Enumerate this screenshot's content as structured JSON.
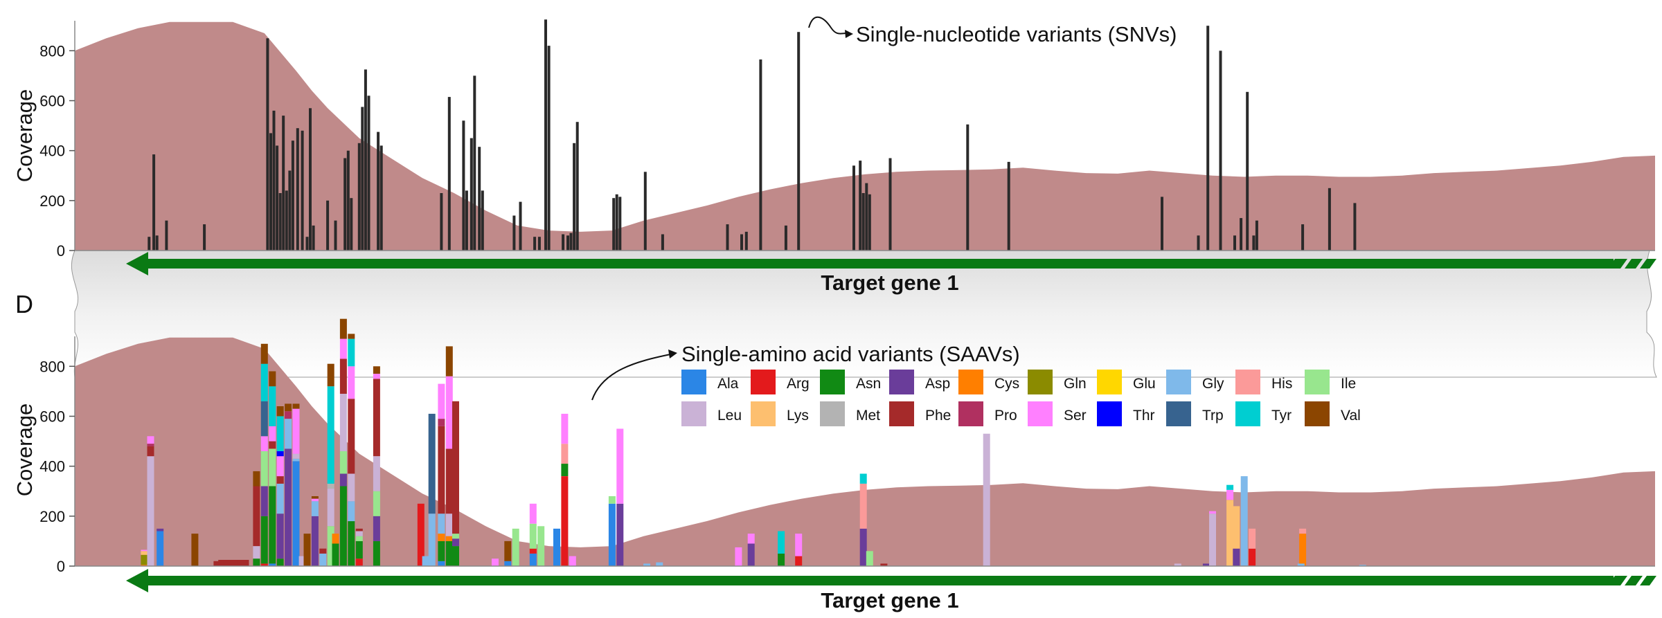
{
  "panel_letter": "D",
  "colors": {
    "coverage_fill": "#c08a8a",
    "snv_bar": "#2a2a2a",
    "gene_arrow": "#0a7a14",
    "separator": "#d6d6d6"
  },
  "amino_acids": [
    {
      "name": "Ala",
      "color": "#2b86e6"
    },
    {
      "name": "Arg",
      "color": "#e31a1c"
    },
    {
      "name": "Asn",
      "color": "#118a14"
    },
    {
      "name": "Asp",
      "color": "#6a3d9a"
    },
    {
      "name": "Cys",
      "color": "#ff7f00"
    },
    {
      "name": "Gln",
      "color": "#8b8b00"
    },
    {
      "name": "Glu",
      "color": "#ffd700"
    },
    {
      "name": "Gly",
      "color": "#7fb9ea"
    },
    {
      "name": "His",
      "color": "#fb9a99"
    },
    {
      "name": "Ile",
      "color": "#98e68e"
    },
    {
      "name": "Leu",
      "color": "#cab2d6"
    },
    {
      "name": "Lys",
      "color": "#fdbf6f"
    },
    {
      "name": "Met",
      "color": "#b3b3b3"
    },
    {
      "name": "Phe",
      "color": "#a52a2a"
    },
    {
      "name": "Pro",
      "color": "#b03060"
    },
    {
      "name": "Ser",
      "color": "#ff80ff"
    },
    {
      "name": "Thr",
      "color": "#0000ff"
    },
    {
      "name": "Trp",
      "color": "#37638f"
    },
    {
      "name": "Tyr",
      "color": "#00ced1"
    },
    {
      "name": "Val",
      "color": "#8b4500"
    }
  ],
  "chart_data": [
    {
      "type": "bar",
      "title": "",
      "annotation": "Single-nucleotide variants (SNVs)",
      "ylabel": "Coverage",
      "xlabel": "",
      "ylim": [
        0,
        920
      ],
      "yticks": [
        "0",
        "200",
        "400",
        "600",
        "800"
      ],
      "xlim": [
        0,
        1000
      ],
      "gene_label": "Target gene 1",
      "coverage": {
        "x": [
          0,
          20,
          40,
          60,
          80,
          100,
          120,
          140,
          150,
          160,
          180,
          200,
          220,
          240,
          260,
          280,
          300,
          320,
          340,
          360,
          380,
          400,
          420,
          440,
          460,
          480,
          500,
          520,
          540,
          560,
          580,
          600,
          620,
          640,
          660,
          680,
          700,
          720,
          740,
          760,
          780,
          800,
          820,
          840,
          860,
          880,
          900,
          920,
          940,
          960,
          980,
          1000
        ],
        "y": [
          800,
          850,
          890,
          915,
          915,
          915,
          870,
          720,
          640,
          570,
          450,
          370,
          290,
          230,
          160,
          100,
          80,
          75,
          80,
          120,
          150,
          180,
          215,
          245,
          270,
          290,
          305,
          315,
          320,
          322,
          325,
          332,
          320,
          310,
          308,
          320,
          310,
          300,
          295,
          300,
          300,
          295,
          295,
          300,
          310,
          315,
          320,
          330,
          340,
          355,
          375,
          380
        ]
      },
      "bars": [
        {
          "x": 47,
          "y": 55
        },
        {
          "x": 50,
          "y": 385
        },
        {
          "x": 52,
          "y": 60
        },
        {
          "x": 58,
          "y": 120
        },
        {
          "x": 82,
          "y": 105
        },
        {
          "x": 122,
          "y": 850
        },
        {
          "x": 124,
          "y": 470
        },
        {
          "x": 126,
          "y": 560
        },
        {
          "x": 128,
          "y": 420
        },
        {
          "x": 130,
          "y": 230
        },
        {
          "x": 132,
          "y": 540
        },
        {
          "x": 134,
          "y": 240
        },
        {
          "x": 136,
          "y": 320
        },
        {
          "x": 138,
          "y": 440
        },
        {
          "x": 141,
          "y": 490
        },
        {
          "x": 144,
          "y": 480
        },
        {
          "x": 147,
          "y": 55
        },
        {
          "x": 149,
          "y": 570
        },
        {
          "x": 151,
          "y": 100
        },
        {
          "x": 160,
          "y": 200
        },
        {
          "x": 165,
          "y": 120
        },
        {
          "x": 171,
          "y": 370
        },
        {
          "x": 173,
          "y": 400
        },
        {
          "x": 175,
          "y": 210
        },
        {
          "x": 180,
          "y": 430
        },
        {
          "x": 182,
          "y": 575
        },
        {
          "x": 184,
          "y": 725
        },
        {
          "x": 186,
          "y": 620
        },
        {
          "x": 192,
          "y": 475
        },
        {
          "x": 194,
          "y": 420
        },
        {
          "x": 232,
          "y": 230
        },
        {
          "x": 237,
          "y": 615
        },
        {
          "x": 246,
          "y": 520
        },
        {
          "x": 248,
          "y": 240
        },
        {
          "x": 251,
          "y": 450
        },
        {
          "x": 253,
          "y": 700
        },
        {
          "x": 256,
          "y": 415
        },
        {
          "x": 258,
          "y": 240
        },
        {
          "x": 278,
          "y": 140
        },
        {
          "x": 282,
          "y": 195
        },
        {
          "x": 291,
          "y": 55
        },
        {
          "x": 294,
          "y": 55
        },
        {
          "x": 298,
          "y": 925
        },
        {
          "x": 300,
          "y": 820
        },
        {
          "x": 309,
          "y": 65
        },
        {
          "x": 312,
          "y": 60
        },
        {
          "x": 314,
          "y": 70
        },
        {
          "x": 316,
          "y": 430
        },
        {
          "x": 318,
          "y": 515
        },
        {
          "x": 341,
          "y": 210
        },
        {
          "x": 343,
          "y": 225
        },
        {
          "x": 345,
          "y": 215
        },
        {
          "x": 361,
          "y": 315
        },
        {
          "x": 372,
          "y": 65
        },
        {
          "x": 413,
          "y": 105
        },
        {
          "x": 422,
          "y": 65
        },
        {
          "x": 425,
          "y": 75
        },
        {
          "x": 434,
          "y": 765
        },
        {
          "x": 450,
          "y": 100
        },
        {
          "x": 458,
          "y": 875
        },
        {
          "x": 493,
          "y": 340
        },
        {
          "x": 497,
          "y": 360
        },
        {
          "x": 499,
          "y": 230
        },
        {
          "x": 501,
          "y": 270
        },
        {
          "x": 503,
          "y": 225
        },
        {
          "x": 516,
          "y": 370
        },
        {
          "x": 565,
          "y": 505
        },
        {
          "x": 591,
          "y": 355
        },
        {
          "x": 688,
          "y": 215
        },
        {
          "x": 711,
          "y": 60
        },
        {
          "x": 717,
          "y": 900
        },
        {
          "x": 725,
          "y": 800
        },
        {
          "x": 734,
          "y": 60
        },
        {
          "x": 738,
          "y": 130
        },
        {
          "x": 742,
          "y": 635
        },
        {
          "x": 746,
          "y": 60
        },
        {
          "x": 748,
          "y": 120
        },
        {
          "x": 777,
          "y": 105
        },
        {
          "x": 794,
          "y": 250
        },
        {
          "x": 810,
          "y": 190
        }
      ]
    },
    {
      "type": "bar",
      "title": "",
      "annotation": "Single-amino acid variants (SAAVs)",
      "ylabel": "Coverage",
      "xlabel": "",
      "ylim": [
        0,
        920
      ],
      "yticks": [
        "0",
        "200",
        "400",
        "600",
        "800"
      ],
      "xlim": [
        0,
        1000
      ],
      "gene_label": "Target gene 1",
      "stack_order": [
        "Ala",
        "Arg",
        "Asn",
        "Asp",
        "Cys",
        "Gln",
        "Glu",
        "Gly",
        "His",
        "Ile",
        "Leu",
        "Lys",
        "Met",
        "Phe",
        "Pro",
        "Ser",
        "Thr",
        "Trp",
        "Tyr",
        "Val"
      ],
      "bars": [
        {
          "x": 44,
          "v": {
            "Gln": 40,
            "Lys": 15,
            "Cys": 5,
            "Ser": 5
          }
        },
        {
          "x": 48,
          "v": {
            "Leu": 440,
            "Phe": 40,
            "Ser": 30,
            "Pro": 10
          }
        },
        {
          "x": 54,
          "v": {
            "Ala": 140,
            "Asp": 10
          }
        },
        {
          "x": 76,
          "v": {
            "Val": 130
          }
        },
        {
          "x": 90,
          "v": {
            "Phe": 20
          }
        },
        {
          "x": 93,
          "v": {
            "Phe": 25
          }
        },
        {
          "x": 96,
          "v": {
            "Phe": 25
          }
        },
        {
          "x": 99,
          "v": {
            "Phe": 25
          }
        },
        {
          "x": 102,
          "v": {
            "Phe": 25
          }
        },
        {
          "x": 105,
          "v": {
            "Phe": 25
          }
        },
        {
          "x": 108,
          "v": {
            "Phe": 25
          }
        },
        {
          "x": 115,
          "v": {
            "Leu": 50,
            "Phe": 240,
            "Asn": 30,
            "Val": 60
          }
        },
        {
          "x": 120,
          "v": {
            "Arg": 10,
            "Asn": 190,
            "Asp": 120,
            "Ile": 140,
            "Tyr": 150,
            "Ser": 60,
            "Trp": 140,
            "Val": 80
          }
        },
        {
          "x": 125,
          "v": {
            "Ala": 10,
            "Asn": 310,
            "Ile": 150,
            "Phe": 30,
            "Ser": 60,
            "Tyr": 160,
            "Val": 60
          }
        },
        {
          "x": 130,
          "v": {
            "Asn": 30,
            "Asp": 180,
            "Gly": 120,
            "Ser": 80,
            "Tyr": 140,
            "Thr": 20,
            "Phe": 30,
            "Val": 40
          }
        },
        {
          "x": 135,
          "v": {
            "Asp": 470,
            "Gly": 120,
            "Pro": 30,
            "Val": 30
          }
        },
        {
          "x": 140,
          "v": {
            "Ala": 420,
            "Gly": 10,
            "Ser": 180,
            "Val": 20,
            "Leu": 20
          }
        },
        {
          "x": 144,
          "v": {
            "Leu": 40
          }
        },
        {
          "x": 147,
          "v": {
            "Val": 130
          }
        },
        {
          "x": 152,
          "v": {
            "Asp": 200,
            "Gly": 60,
            "Ser": 10,
            "Val": 10
          }
        },
        {
          "x": 157,
          "v": {
            "Gly": 50,
            "Phe": 20
          }
        },
        {
          "x": 162,
          "v": {
            "Met": 20,
            "Ile": 160,
            "Leu": 150,
            "Tyr": 390,
            "Val": 90
          }
        },
        {
          "x": 165,
          "v": {
            "Cys": 40,
            "Asn": 90
          }
        },
        {
          "x": 170,
          "v": {
            "Asn": 320,
            "Asp": 50,
            "Ile": 90,
            "Leu": 230,
            "Phe": 140,
            "Ser": 80,
            "Val": 80
          }
        },
        {
          "x": 175,
          "v": {
            "Asn": 180,
            "Gly": 80,
            "Leu": 110,
            "Phe": 300,
            "Ser": 130,
            "Tyr": 110,
            "Val": 20
          }
        },
        {
          "x": 180,
          "v": {
            "Arg": 30,
            "Asn": 70,
            "Ile": 20,
            "Leu": 20,
            "Phe": 10
          }
        },
        {
          "x": 191,
          "v": {
            "Asn": 100,
            "Asp": 100,
            "Ile": 100,
            "Leu": 140,
            "Phe": 310,
            "Ser": 20,
            "Val": 30
          }
        },
        {
          "x": 219,
          "v": {
            "Arg": 250
          }
        },
        {
          "x": 222,
          "v": {
            "Gly": 40
          }
        },
        {
          "x": 226,
          "v": {
            "Gly": 210,
            "Trp": 400
          }
        },
        {
          "x": 232,
          "v": {
            "Asn": 80,
            "Ala": 20,
            "Cys": 30,
            "Gly": 80,
            "Phe": 350,
            "Ser": 140,
            "Pro": 30
          }
        },
        {
          "x": 237,
          "v": {
            "Asn": 100,
            "Cys": 20,
            "Phe": 260,
            "Leu": 90,
            "Ser": 290,
            "Val": 120
          }
        },
        {
          "x": 241,
          "v": {
            "Asn": 80,
            "Asp": 30,
            "Ile": 20,
            "Phe": 530
          }
        },
        {
          "x": 266,
          "v": {
            "Ser": 30
          }
        },
        {
          "x": 274,
          "v": {
            "Ala": 20,
            "Val": 80
          }
        },
        {
          "x": 279,
          "v": {
            "Ile": 150
          }
        },
        {
          "x": 290,
          "v": {
            "Ala": 50,
            "Arg": 20,
            "Ile": 100,
            "Ser": 80
          }
        },
        {
          "x": 295,
          "v": {
            "Ile": 160
          }
        },
        {
          "x": 305,
          "v": {
            "Ala": 150
          }
        },
        {
          "x": 310,
          "v": {
            "Arg": 360,
            "Asn": 50,
            "His": 80,
            "Ser": 120
          }
        },
        {
          "x": 315,
          "v": {
            "Ser": 40
          }
        },
        {
          "x": 340,
          "v": {
            "Ala": 250,
            "Ile": 30
          }
        },
        {
          "x": 345,
          "v": {
            "Asp": 250,
            "Ser": 300
          }
        },
        {
          "x": 362,
          "v": {
            "Gly": 10
          }
        },
        {
          "x": 370,
          "v": {
            "Gly": 15
          }
        },
        {
          "x": 420,
          "v": {
            "Ser": 75
          }
        },
        {
          "x": 428,
          "v": {
            "Asp": 90,
            "Ser": 40
          }
        },
        {
          "x": 447,
          "v": {
            "Asn": 50,
            "Tyr": 90
          }
        },
        {
          "x": 458,
          "v": {
            "Arg": 40,
            "Ser": 90
          }
        },
        {
          "x": 499,
          "v": {
            "Asp": 150,
            "His": 180,
            "Tyr": 40
          }
        },
        {
          "x": 503,
          "v": {
            "Ile": 60
          }
        },
        {
          "x": 512,
          "v": {
            "Phe": 10
          }
        },
        {
          "x": 577,
          "v": {
            "Leu": 530
          }
        },
        {
          "x": 698,
          "v": {
            "Leu": 10
          }
        },
        {
          "x": 716,
          "v": {
            "Asp": 10
          }
        },
        {
          "x": 720,
          "v": {
            "Leu": 210,
            "Ser": 10
          }
        },
        {
          "x": 731,
          "v": {
            "Lys": 265,
            "Ser": 40,
            "Tyr": 20
          }
        },
        {
          "x": 735,
          "v": {
            "Asp": 70,
            "Lys": 170
          }
        },
        {
          "x": 740,
          "v": {
            "Gly": 360
          }
        },
        {
          "x": 745,
          "v": {
            "Arg": 70,
            "His": 80
          }
        },
        {
          "x": 777,
          "v": {
            "Cys": 130,
            "His": 20
          }
        },
        {
          "x": 776,
          "v": {
            "Gly": 10
          }
        },
        {
          "x": 815,
          "v": {
            "Gly": 5
          }
        }
      ]
    }
  ]
}
